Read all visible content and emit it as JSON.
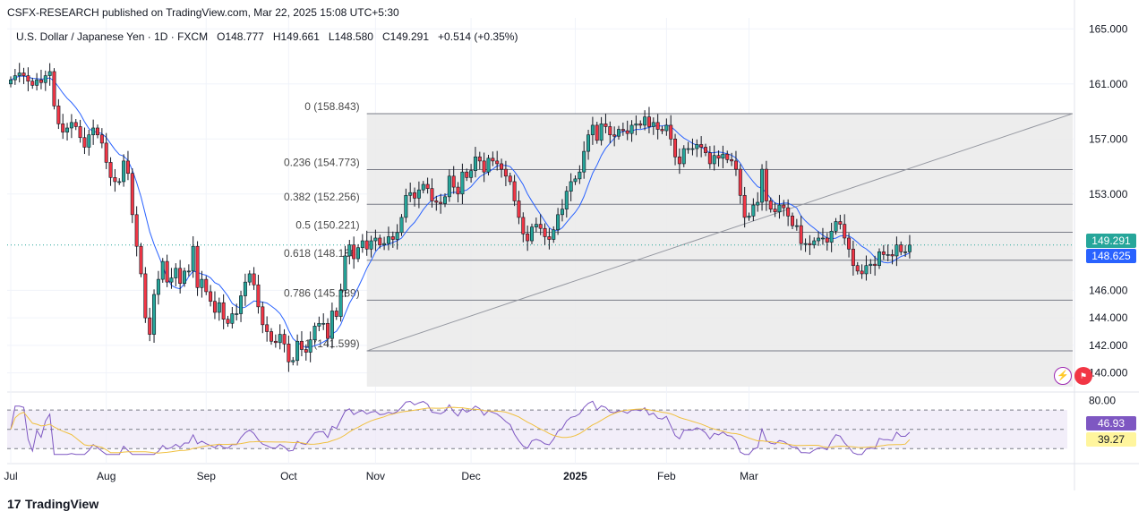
{
  "header": {
    "published": "CSFX-RESEARCH published on TradingView.com, Mar 22, 2025 15:08 UTC+5:30",
    "symbol": "U.S. Dollar / Japanese Yen · 1D · FXCM",
    "open": "O148.777",
    "high": "H149.661",
    "low": "L148.580",
    "close": "C149.291",
    "change": "+0.514 (+0.35%)"
  },
  "brand": {
    "name": "TradingView",
    "icon": "tradingview-logo-icon"
  },
  "colors": {
    "up": "#26a69a",
    "down": "#f23645",
    "ma": "#2962ff",
    "rsi": "#7e57c2",
    "rsi_ma": "#fdd835",
    "price_tag": "#26a69a",
    "ma_tag": "#2962ff",
    "rsi_ma_tag": "#fff59d"
  },
  "tags": {
    "last_price": "149.291",
    "ma_value": "148.625",
    "rsi": "46.93",
    "rsi_ma": "39.27"
  },
  "chart_data": [
    {
      "type": "candlestick",
      "title": "U.S. Dollar / Japanese Yen",
      "x_tick_labels": [
        "Jul",
        "Aug",
        "Sep",
        "Oct",
        "Nov",
        "Dec",
        "2025",
        "Feb",
        "Mar"
      ],
      "y_tick_labels": [
        "165.000",
        "161.000",
        "157.000",
        "153.000",
        "149.291",
        "148.625",
        "146.000",
        "144.000",
        "142.000",
        "140.000"
      ],
      "ylim": [
        139.0,
        165.8
      ],
      "grid": true,
      "fibonacci": [
        {
          "level": "0",
          "price": "158.843"
        },
        {
          "level": "0.236",
          "price": "154.773"
        },
        {
          "level": "0.382",
          "price": "152.256"
        },
        {
          "level": "0.5",
          "price": "150.221"
        },
        {
          "level": "0.618",
          "price": "148.186"
        },
        {
          "level": "0.786",
          "price": "145.289"
        },
        {
          "level": "1",
          "price": "141.599"
        }
      ],
      "close": [
        161.3,
        161.6,
        161.8,
        161.6,
        161.2,
        160.9,
        161.3,
        161.1,
        161.6,
        161.9,
        159.4,
        158.1,
        157.5,
        157.8,
        158.2,
        157.9,
        157.1,
        156.4,
        157.3,
        157.8,
        157.3,
        156.7,
        155.3,
        154.2,
        153.9,
        153.9,
        155.4,
        154.5,
        151.5,
        149.2,
        147.2,
        144.0,
        142.8,
        145.7,
        146.8,
        148.1,
        146.6,
        146.9,
        147.6,
        146.5,
        147.4,
        147.4,
        149.2,
        146.2,
        146.8,
        145.9,
        145.2,
        144.4,
        145.1,
        143.9,
        143.6,
        144.3,
        144.3,
        145.6,
        146.6,
        147.2,
        146.4,
        144.8,
        143.5,
        143.0,
        142.3,
        142.2,
        142.8,
        142.1,
        140.8,
        140.9,
        142.3,
        141.7,
        141.5,
        142.4,
        143.4,
        143.6,
        143.6,
        142.5,
        144.5,
        144.1,
        146.0,
        148.5,
        149.3,
        148.3,
        149.1,
        149.6,
        149.0,
        149.6,
        149.8,
        149.3,
        149.4,
        149.9,
        149.7,
        150.2,
        151.3,
        152.9,
        153.1,
        152.7,
        153.3,
        153.7,
        153.4,
        152.5,
        152.4,
        152.3,
        152.8,
        154.3,
        153.5,
        153.0,
        154.6,
        154.2,
        154.7,
        155.7,
        155.4,
        154.6,
        155.6,
        155.4,
        155.2,
        154.8,
        154.3,
        153.9,
        152.5,
        151.3,
        150.1,
        149.6,
        150.6,
        150.8,
        150.5,
        149.9,
        149.7,
        150.4,
        151.5,
        151.9,
        153.2,
        153.9,
        154.1,
        154.6,
        156.1,
        157.3,
        158.0,
        156.9,
        158.1,
        157.9,
        157.3,
        157.2,
        157.7,
        157.6,
        157.4,
        158.0,
        158.1,
        158.0,
        158.6,
        157.9,
        158.2,
        157.7,
        157.6,
        158.0,
        157.0,
        155.7,
        155.2,
        156.3,
        156.3,
        156.3,
        156.6,
        156.4,
        156.0,
        155.2,
        155.8,
        155.6,
        155.9,
        155.5,
        155.4,
        154.8,
        152.9,
        151.3,
        151.4,
        152.2,
        152.4,
        154.8,
        152.5,
        151.9,
        151.7,
        152.2,
        152.0,
        151.4,
        150.7,
        150.7,
        149.4,
        149.4,
        149.3,
        149.6,
        149.8,
        149.8,
        149.5,
        150.3,
        151.0,
        150.8,
        149.8,
        149.0,
        147.8,
        147.4,
        147.2,
        147.8,
        147.9,
        147.8,
        148.8,
        148.6,
        148.6,
        148.5,
        149.3,
        148.8,
        148.8,
        149.29
      ],
      "ma_last": 148.625,
      "rsi": {
        "ylim": [
          20,
          85
        ],
        "tick_labels": [
          "80.00"
        ],
        "last": 46.93,
        "ma_last": 39.27,
        "bands": [
          70,
          50,
          30
        ]
      }
    }
  ]
}
